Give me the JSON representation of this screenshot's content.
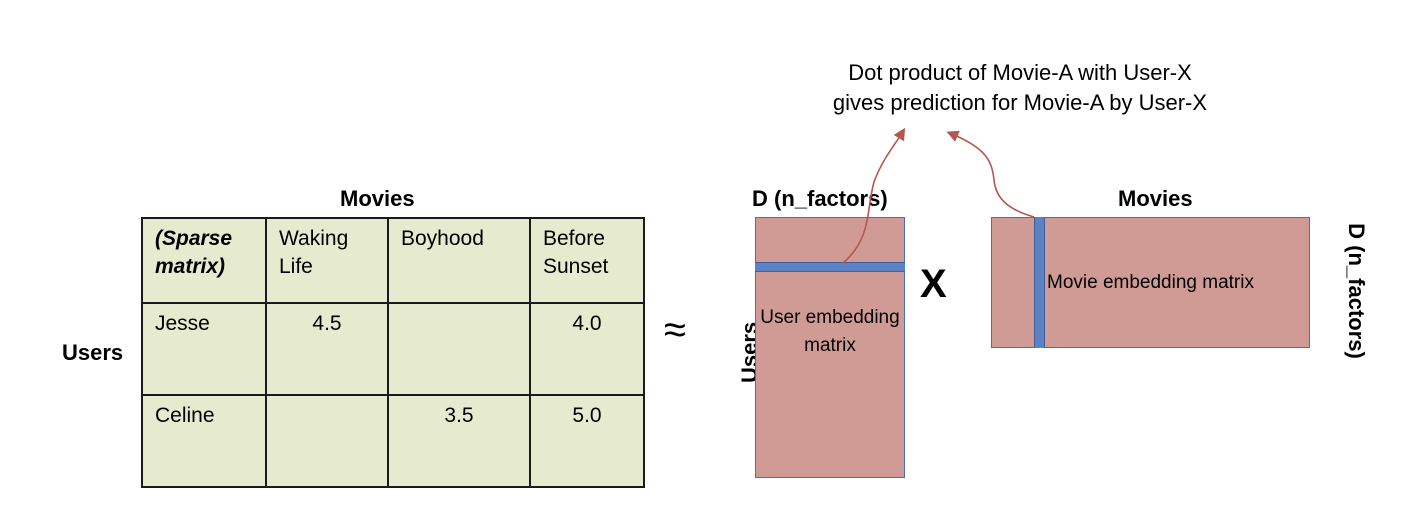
{
  "caption": {
    "line1": "Dot product of Movie-A with User-X",
    "line2": "gives prediction for Movie-A by User-X"
  },
  "sparse_table": {
    "title": "Movies",
    "row_axis_label": "Users",
    "header": [
      "(Sparse matrix)",
      "Waking Life",
      "Boyhood",
      "Before Sunset"
    ],
    "rows": [
      {
        "user": "Jesse",
        "values": [
          "4.5",
          "",
          "4.0"
        ]
      },
      {
        "user": "Celine",
        "values": [
          "",
          "3.5",
          "5.0"
        ]
      }
    ]
  },
  "approx_symbol": "≈",
  "user_matrix": {
    "top_label": "D (n_factors)",
    "side_label": "Users",
    "label": "User embedding matrix"
  },
  "times_symbol": "X",
  "movie_matrix": {
    "top_label": "Movies",
    "side_label": "D (n_factors)",
    "label": "Movie embedding matrix"
  },
  "colors": {
    "table_fill": "#e6ebcf",
    "matrix_fill": "#d19b95",
    "band_fill": "#5b83c4",
    "arrow": "#b5574f"
  }
}
